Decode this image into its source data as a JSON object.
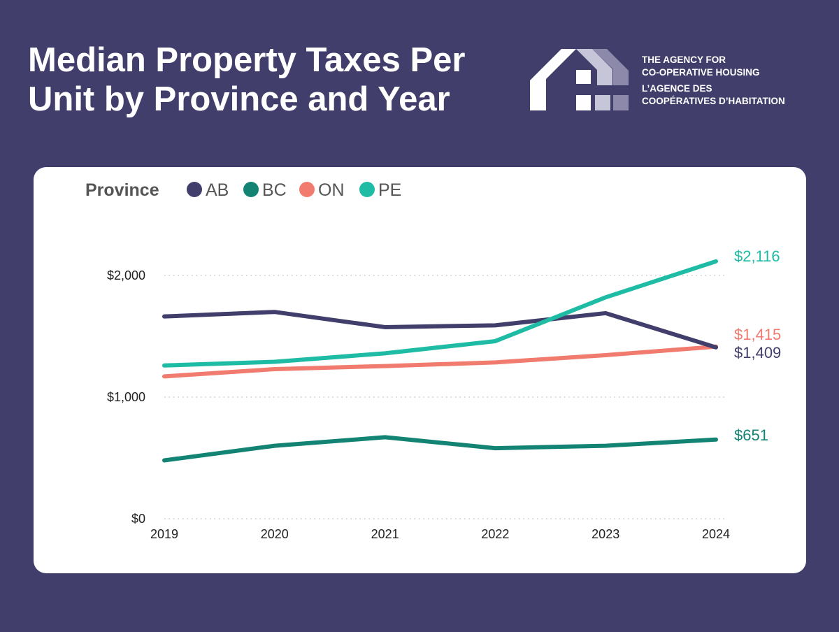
{
  "header": {
    "title_line1": "Median Property Taxes Per",
    "title_line2": "Unit by Province and Year"
  },
  "org": {
    "en_line1": "THE AGENCY FOR",
    "en_line2": "CO-OPERATIVE HOUSING",
    "fr_line1": "L’AGENCE DES",
    "fr_line2": "COOPÉRATIVES D’HABITATION"
  },
  "chart_data": {
    "type": "line",
    "title": "Median Property Taxes Per Unit by Province and Year",
    "legend_title": "Province",
    "legend_position": "top-left",
    "x": [
      2019,
      2020,
      2021,
      2022,
      2023,
      2024
    ],
    "x_tick_labels": [
      "2019",
      "2020",
      "2021",
      "2022",
      "2023",
      "2024"
    ],
    "ylim": [
      0,
      2200
    ],
    "y_ticks": [
      0,
      1000,
      2000
    ],
    "y_tick_labels": [
      "$0",
      "$1,000",
      "$2,000"
    ],
    "grid": "horizontal dotted",
    "series": [
      {
        "name": "AB",
        "color": "#423e6c",
        "values": [
          1663,
          1700,
          1575,
          1590,
          1690,
          1409
        ],
        "end_label": "$1,409"
      },
      {
        "name": "BC",
        "color": "#138474",
        "values": [
          480,
          600,
          670,
          580,
          600,
          651
        ],
        "end_label": "$651"
      },
      {
        "name": "ON",
        "color": "#f07b6e",
        "values": [
          1170,
          1230,
          1255,
          1285,
          1345,
          1415
        ],
        "end_label": "$1,415"
      },
      {
        "name": "PE",
        "color": "#1ebca4",
        "values": [
          1260,
          1290,
          1360,
          1460,
          1820,
          2116
        ],
        "end_label": "$2,116"
      }
    ]
  }
}
